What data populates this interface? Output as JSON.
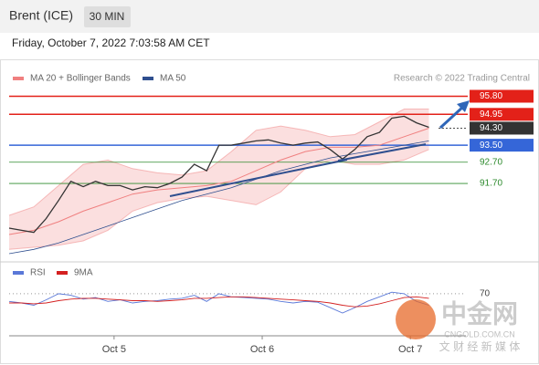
{
  "header": {
    "title": "Brent (ICE)",
    "interval": "30 MIN",
    "timestamp": "Friday, October 7, 2022 7:03:58 AM CET",
    "credit": "Research © 2022 Trading Central"
  },
  "watermark": {
    "brand": "中金网",
    "site": "CNGOLD.COM.CN",
    "tagline": "文 财 经 新 媒 体"
  },
  "chart_data": [
    {
      "type": "line",
      "ylim": [
        88.1,
        96.25
      ],
      "xlim": [
        0,
        74
      ],
      "xticks": [
        {
          "value": 17,
          "label": "Oct 5"
        },
        {
          "value": 41,
          "label": "Oct 6"
        },
        {
          "value": 65,
          "label": "Oct 7"
        }
      ],
      "levels": [
        {
          "value": 95.8,
          "label": "95.80"
        },
        {
          "value": 94.95,
          "label": "94.95"
        },
        {
          "value": 94.3,
          "label": "94.30"
        },
        {
          "value": 93.5,
          "label": "93.50"
        },
        {
          "value": 92.7,
          "label": "92.70"
        },
        {
          "value": 91.7,
          "label": "91.70"
        }
      ],
      "level_colors": [
        "#e32119",
        "#e32119",
        "#333333",
        "#3566d8",
        "#2e8b2e",
        "#2e8b2e"
      ],
      "level_boxed": [
        true,
        true,
        true,
        true,
        false,
        false
      ],
      "price": {
        "color": "#333333",
        "x": [
          0,
          2,
          4,
          6,
          8,
          10,
          12,
          14,
          16,
          18,
          20,
          22,
          24,
          26,
          28,
          30,
          32,
          34,
          36,
          38,
          40,
          42,
          44,
          46,
          48,
          50,
          52,
          54,
          56,
          58,
          60,
          62,
          64,
          66,
          68
        ],
        "values": [
          89.6,
          89.5,
          89.4,
          90.05,
          90.9,
          91.8,
          91.55,
          91.8,
          91.6,
          91.6,
          91.4,
          91.55,
          91.5,
          91.7,
          92.0,
          92.6,
          92.3,
          93.5,
          93.5,
          93.6,
          93.7,
          93.75,
          93.6,
          93.5,
          93.6,
          93.65,
          93.3,
          92.85,
          93.3,
          93.9,
          94.1,
          94.77,
          94.86,
          94.55,
          94.34
        ]
      },
      "series": [
        {
          "name": "MA 20 + Bollinger Bands",
          "color": "#f08080",
          "x": [
            0,
            4,
            8,
            12,
            16,
            20,
            24,
            28,
            32,
            36,
            40,
            44,
            48,
            52,
            56,
            60,
            64,
            68
          ],
          "values": [
            89.3,
            89.5,
            89.9,
            90.4,
            90.8,
            91.2,
            91.4,
            91.5,
            91.6,
            91.8,
            92.3,
            92.8,
            93.2,
            93.4,
            93.4,
            93.5,
            93.9,
            94.3
          ],
          "upper": [
            90.2,
            90.6,
            91.6,
            92.6,
            92.8,
            92.4,
            92.2,
            92.1,
            92.3,
            93.2,
            94.2,
            94.4,
            94.2,
            93.9,
            94.0,
            94.6,
            95.2,
            95.2
          ],
          "lower": [
            88.6,
            88.7,
            88.8,
            89.0,
            89.5,
            90.4,
            90.8,
            91.0,
            91.1,
            90.9,
            90.7,
            91.3,
            92.4,
            92.8,
            92.6,
            92.6,
            92.8,
            93.3
          ]
        },
        {
          "name": "MA 50",
          "color": "#2f4f8f",
          "x": [
            0,
            4,
            8,
            12,
            16,
            20,
            24,
            28,
            32,
            36,
            40,
            44,
            48,
            52,
            56,
            60,
            64,
            68
          ],
          "values": [
            88.4,
            88.6,
            88.9,
            89.3,
            89.7,
            90.1,
            90.5,
            90.9,
            91.2,
            91.5,
            91.9,
            92.3,
            92.6,
            92.9,
            93.1,
            93.3,
            93.5,
            93.7
          ]
        }
      ]
    },
    {
      "type": "line",
      "ylim": [
        13,
        90
      ],
      "xlim": [
        0,
        74
      ],
      "yticks": [
        70
      ],
      "series": [
        {
          "name": "RSI",
          "color": "#5a78d8",
          "x": [
            0,
            2,
            4,
            6,
            8,
            10,
            12,
            14,
            16,
            18,
            20,
            22,
            24,
            26,
            28,
            30,
            32,
            34,
            36,
            38,
            40,
            42,
            44,
            46,
            48,
            50,
            52,
            54,
            56,
            58,
            60,
            62,
            64,
            66,
            68
          ],
          "values": [
            60,
            58,
            55,
            62,
            70,
            68,
            63,
            65,
            60,
            62,
            58,
            60,
            61,
            63,
            64,
            68,
            60,
            70,
            66,
            65,
            64,
            63,
            60,
            58,
            60,
            59,
            52,
            45,
            52,
            60,
            66,
            72,
            70,
            60,
            55
          ]
        },
        {
          "name": "9MA",
          "color": "#d42020",
          "x": [
            0,
            2,
            4,
            6,
            8,
            10,
            12,
            14,
            16,
            18,
            20,
            22,
            24,
            26,
            28,
            30,
            32,
            34,
            36,
            38,
            40,
            42,
            44,
            46,
            48,
            50,
            52,
            54,
            56,
            58,
            60,
            62,
            64,
            66,
            68
          ],
          "values": [
            58,
            58,
            57,
            58,
            61,
            63,
            64,
            64,
            63,
            62,
            61,
            61,
            60,
            61,
            62,
            64,
            64,
            65,
            66,
            66,
            65,
            64,
            63,
            62,
            61,
            60,
            58,
            55,
            53,
            54,
            57,
            61,
            65,
            66,
            64
          ]
        }
      ]
    }
  ]
}
